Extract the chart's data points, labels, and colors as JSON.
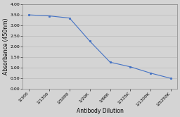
{
  "x_labels": [
    "1/300",
    "1/1300",
    "1/5000",
    "1/20K",
    "1/80K",
    "1/325K",
    "1/1300K",
    "1/5250K"
  ],
  "y_values": [
    3.5,
    3.45,
    3.35,
    2.25,
    1.25,
    1.03,
    0.73,
    0.48
  ],
  "xlabel": "Antibody Dilution",
  "ylabel": "Absorbance (450nm)",
  "ylim": [
    0.0,
    4.0
  ],
  "yticks": [
    0.0,
    0.5,
    1.0,
    1.5,
    2.0,
    2.5,
    3.0,
    3.5,
    4.0
  ],
  "line_color": "#4472C4",
  "marker_color": "#4472C4",
  "bg_color": "#D4D4D4",
  "plot_bg_color": "#D4D4D4",
  "grid_color": "#BBBBBB",
  "axis_label_fontsize": 5.5,
  "tick_fontsize": 4.5
}
